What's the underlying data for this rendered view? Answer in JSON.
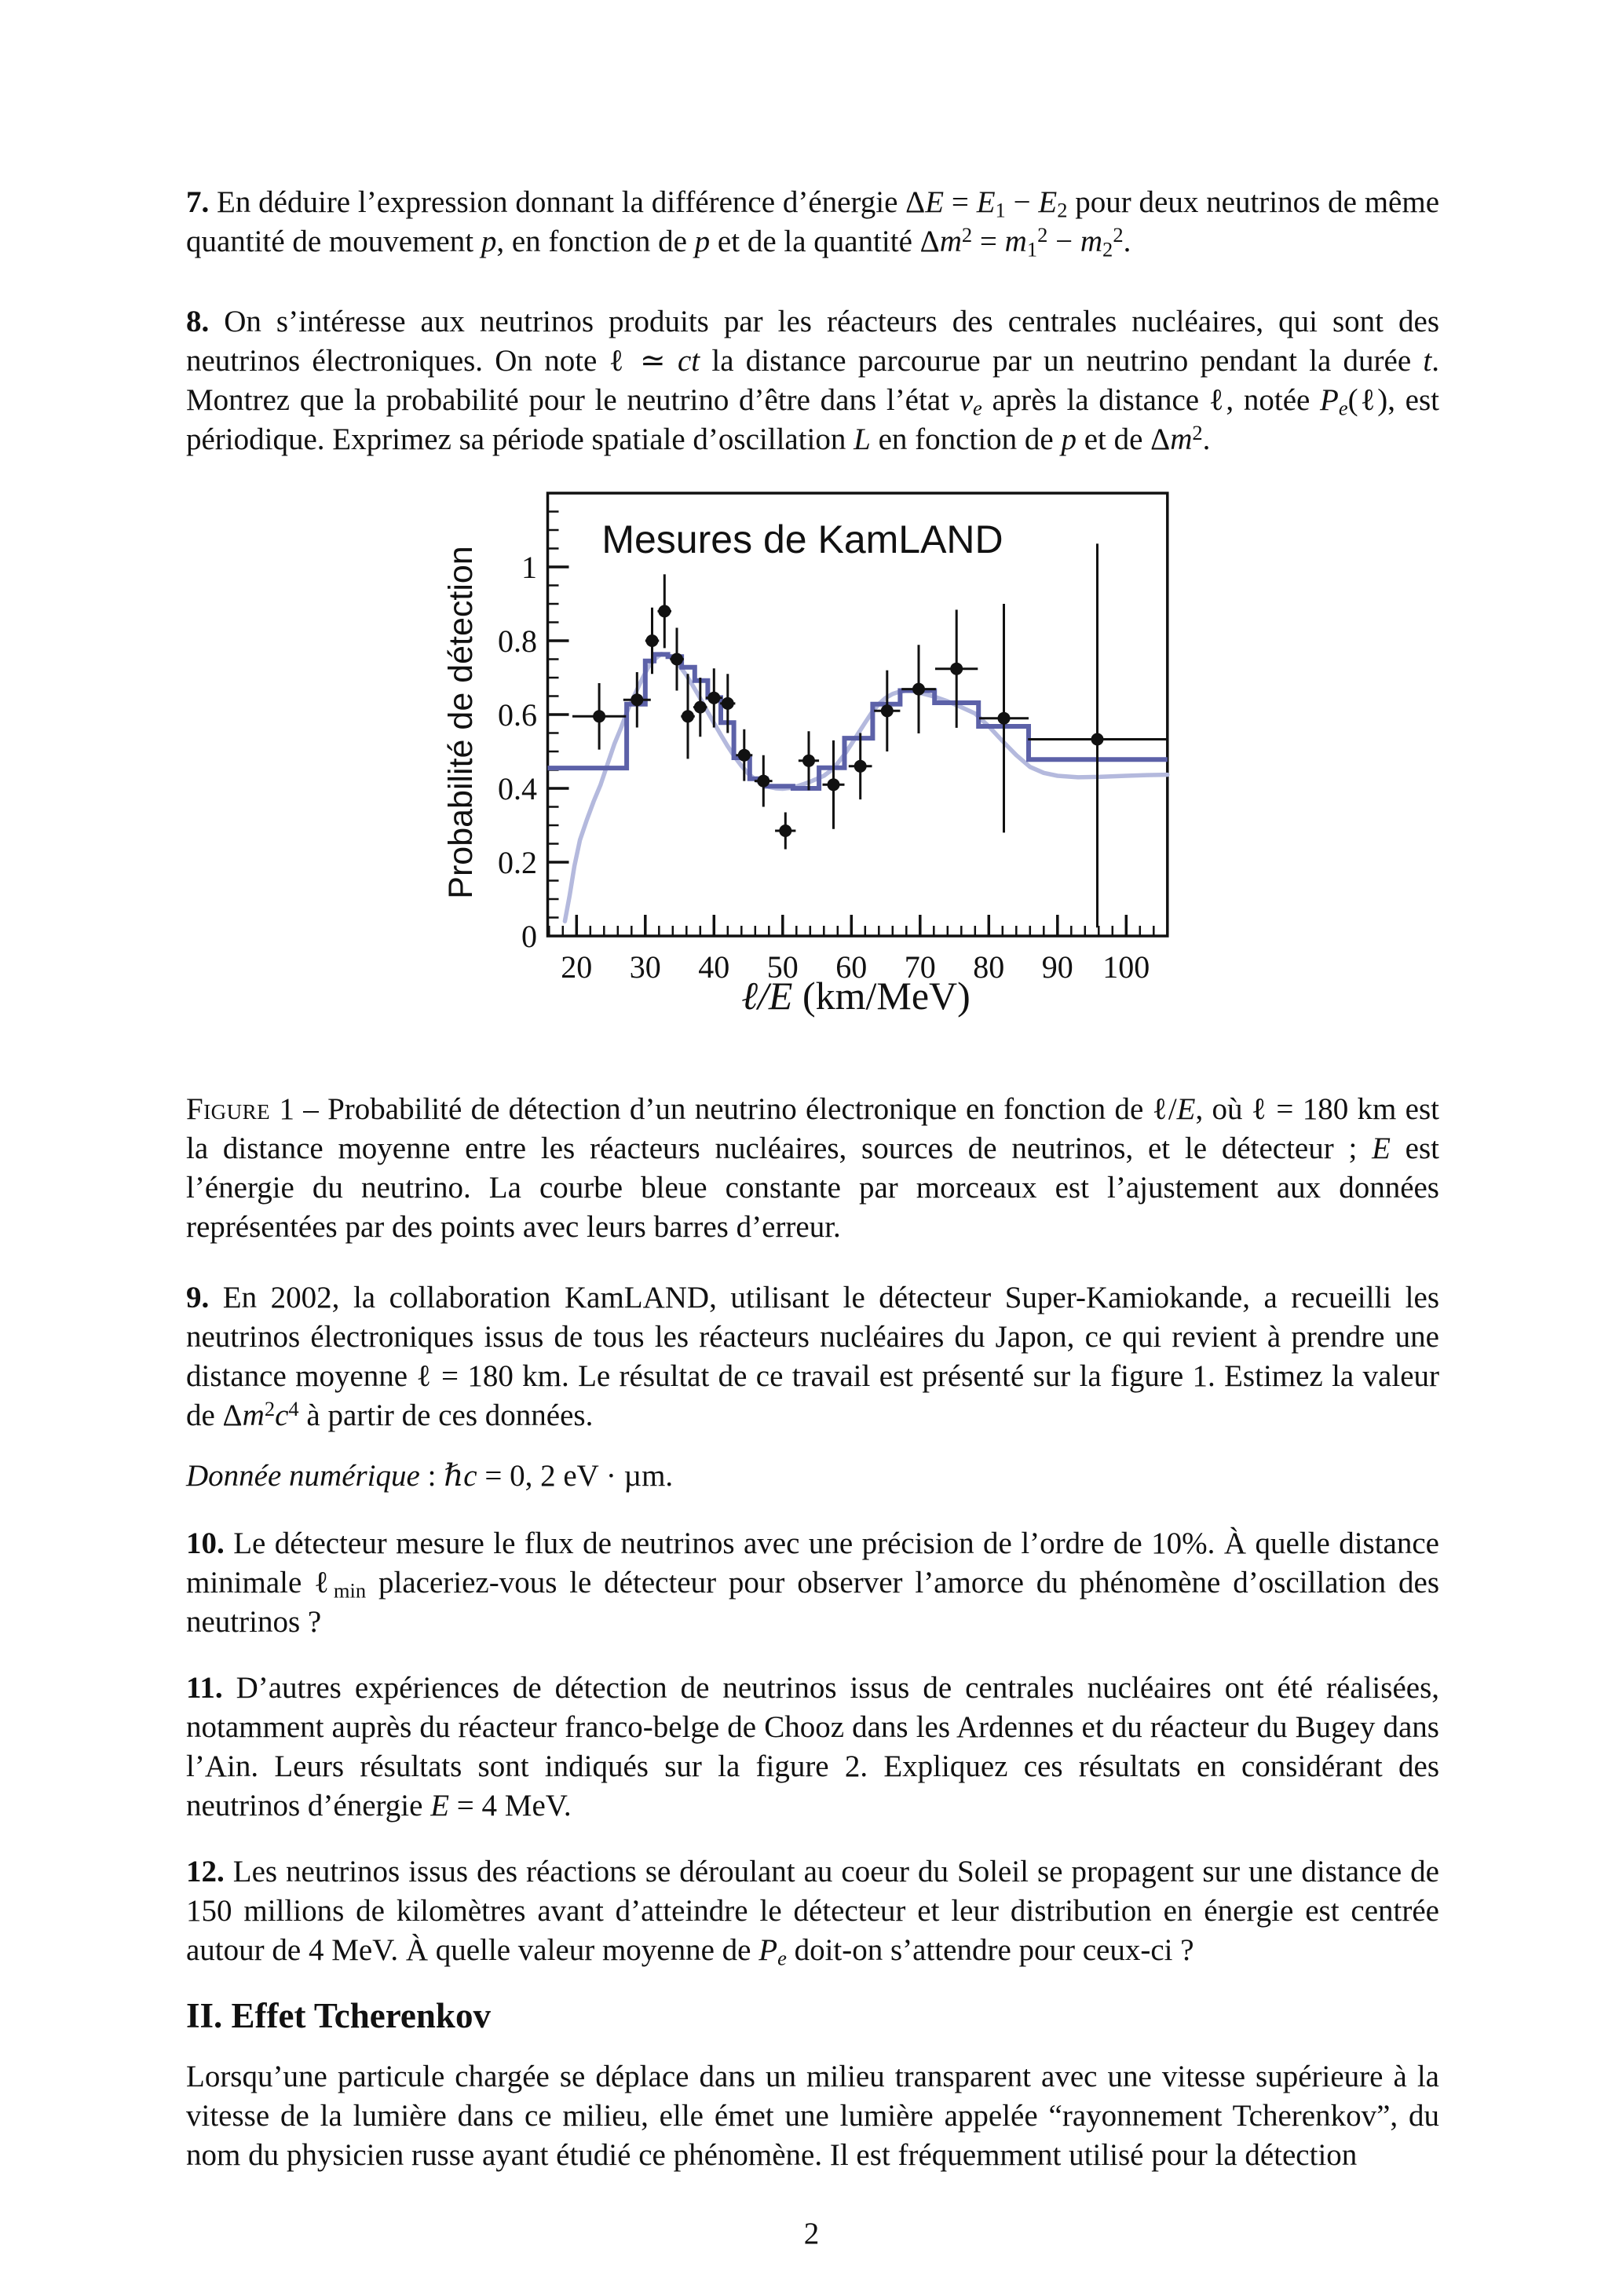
{
  "page": {
    "number": "2"
  },
  "content": {
    "q7_html": "<b>7.</b> En déduire l’expression donnant la différence d’énergie Δ<i>E</i> = <i>E</i><sub>1</sub> − <i>E</i><sub>2</sub> pour deux neutrinos de même quantité de mouvement <i>p</i>, en fonction de <i>p</i> et de la quantité Δ<i>m</i><sup>2</sup> = <i>m</i><sub>1</sub><sup>2</sup> − <i>m</i><sub>2</sub><sup>2</sup>.",
    "q8_html": "<b>8.</b> On s’intéresse aux neutrinos produits par les réacteurs des centrales nucléaires, qui sont des neutrinos électroniques. On note ℓ ≃ <i>ct</i> la distance parcourue par un neutrino pendant la durée <i>t</i>. Montrez que la probabilité pour le neutrino d’être dans l’état <i>ν<sub>e</sub></i> après la distance ℓ, notée <i>P<sub>e</sub></i>(ℓ), est périodique. Exprimez sa période spatiale d’oscillation <i>L</i> en fonction de <i>p</i> et de Δ<i>m</i><sup>2</sup>.",
    "caption_html": "<span class='sc'>Figure</span> 1 – Probabilité de détection d’un neutrino électronique en fonction de ℓ/<i>E</i>, où ℓ = 180 km est la distance moyenne entre les réacteurs nucléaires, sources de neutrinos, et le détecteur ; <i>E</i> est l’énergie du neutrino. La courbe bleue constante par morceaux est l’ajustement aux données représentées par des points avec leurs barres d’erreur.",
    "q9_html": "<b>9.</b> En 2002, la collaboration KamLAND, utilisant le détecteur Super-Kamiokande, a recueilli les neutrinos électroniques issus de tous les réacteurs nucléaires du Japon, ce qui revient à prendre une distance moyenne ℓ = 180 km. Le résultat de ce travail est présenté sur la figure 1. Estimez la valeur de Δ<i>m</i><sup>2</sup><i>c</i><sup>4</sup> à partir de ces données.",
    "data_html": "<i>Donnée numérique</i> : <i>ℏc</i> = 0, 2 eV · µm.",
    "q10_html": "<b>10.</b> Le détecteur mesure le flux de neutrinos avec une précision de l’ordre de 10%. À quelle distance minimale ℓ<sub>min</sub> placeriez-vous le détecteur pour observer l’amorce du phénomène d’oscillation des neutrinos ?",
    "q11_html": "<b>11.</b> D’autres expériences de détection de neutrinos issus de centrales nucléaires ont été réalisées, notamment auprès du réacteur franco-belge de Chooz dans les Ardennes et du réacteur du Bugey dans l’Ain. Leurs résultats sont indiqués sur la figure 2. Expliquez ces résultats en considérant des neutrinos d’énergie <i>E</i> = 4 MeV.",
    "q12_html": "<b>12.</b> Les neutrinos issus des réactions se déroulant au coeur du Soleil se propagent sur une distance de 150 millions de kilomètres avant d’atteindre le détecteur et leur distribution en énergie est centrée autour de 4 MeV. À quelle valeur moyenne de <i>P<sub>e</sub></i> doit-on s’attendre pour ceux-ci ?",
    "section_title": "II. Effet Tcherenkov",
    "intro_html": "Lorsqu’une particule chargée se déplace dans un milieu transparent avec une vitesse supérieure à la vitesse de la lumière dans ce milieu, elle émet une lumière appelée “rayonnement Tcherenkov”, du nom du physicien russe ayant étudié ce phénomène. Il est fréquemment utilisé pour la détection"
  },
  "chart_data": {
    "type": "scatter",
    "title": "Mesures de KamLAND",
    "xlabel": "ℓ/E (km/MeV)",
    "ylabel": "Probabilité de détection",
    "xlim": [
      15.8,
      106
    ],
    "ylim": [
      0,
      1.2
    ],
    "x_major_ticks": [
      20,
      30,
      40,
      50,
      60,
      70,
      80,
      90,
      100
    ],
    "x_minor_step": 2,
    "y_major_ticks": [
      0,
      0.2,
      0.4,
      0.6,
      0.8,
      1
    ],
    "y_minor_step": 0.05,
    "grid": false,
    "legend": "none",
    "colors": {
      "step": "#5c61a8",
      "smooth": "#b4b9dd",
      "points": "#111111",
      "axis": "#111111"
    },
    "points": [
      {
        "x": 23.3,
        "y": 0.595,
        "xerr": 3.9,
        "yerr": 0.09
      },
      {
        "x": 28.8,
        "y": 0.64,
        "xerr": 2.0,
        "yerr": 0.075
      },
      {
        "x": 31.0,
        "y": 0.8,
        "xerr": 1.0,
        "yerr": 0.09
      },
      {
        "x": 32.8,
        "y": 0.88,
        "xerr": 1.0,
        "yerr": 0.1
      },
      {
        "x": 34.6,
        "y": 0.75,
        "xerr": 1.0,
        "yerr": 0.085
      },
      {
        "x": 36.2,
        "y": 0.595,
        "xerr": 1.0,
        "yerr": 0.115
      },
      {
        "x": 38.0,
        "y": 0.62,
        "xerr": 1.0,
        "yerr": 0.08
      },
      {
        "x": 40.0,
        "y": 0.645,
        "xerr": 1.2,
        "yerr": 0.08
      },
      {
        "x": 42.0,
        "y": 0.63,
        "xerr": 1.1,
        "yerr": 0.08
      },
      {
        "x": 44.4,
        "y": 0.49,
        "xerr": 1.2,
        "yerr": 0.07
      },
      {
        "x": 47.2,
        "y": 0.42,
        "xerr": 1.3,
        "yerr": 0.07
      },
      {
        "x": 50.4,
        "y": 0.285,
        "xerr": 1.5,
        "yerr": 0.05
      },
      {
        "x": 53.8,
        "y": 0.475,
        "xerr": 1.5,
        "yerr": 0.08
      },
      {
        "x": 57.4,
        "y": 0.41,
        "xerr": 1.6,
        "yerr": 0.12
      },
      {
        "x": 61.3,
        "y": 0.46,
        "xerr": 1.7,
        "yerr": 0.09
      },
      {
        "x": 65.2,
        "y": 0.61,
        "xerr": 1.9,
        "yerr": 0.11
      },
      {
        "x": 69.8,
        "y": 0.669,
        "xerr": 2.5,
        "yerr": 0.12
      },
      {
        "x": 75.3,
        "y": 0.724,
        "xerr": 3.1,
        "yerr": 0.16
      },
      {
        "x": 82.2,
        "y": 0.59,
        "xerr": 3.6,
        "yerr": 0.31
      },
      {
        "x": 95.8,
        "y": 0.533,
        "xerr": 10.1,
        "yerr_lo": 0.51,
        "yerr_hi": 0.53
      }
    ],
    "step_fit": [
      [
        15.8,
        0.455
      ],
      [
        27.3,
        0.628
      ],
      [
        30.0,
        0.745
      ],
      [
        31.3,
        0.763
      ],
      [
        33.3,
        0.757
      ],
      [
        35.3,
        0.728
      ],
      [
        37.2,
        0.692
      ],
      [
        39.1,
        0.646
      ],
      [
        41.0,
        0.578
      ],
      [
        42.9,
        0.483
      ],
      [
        45.2,
        0.426
      ],
      [
        47.6,
        0.406
      ],
      [
        51.5,
        0.4
      ],
      [
        55.3,
        0.456
      ],
      [
        59.0,
        0.536
      ],
      [
        63.1,
        0.628
      ],
      [
        67.1,
        0.665
      ],
      [
        72.1,
        0.632
      ],
      [
        78.5,
        0.568
      ],
      [
        85.8,
        0.478
      ],
      [
        106,
        0.478
      ]
    ],
    "smooth_curve": [
      [
        18.3,
        0.04
      ],
      [
        19,
        0.11
      ],
      [
        19.7,
        0.19
      ],
      [
        20.5,
        0.26
      ],
      [
        21.5,
        0.315
      ],
      [
        22.5,
        0.365
      ],
      [
        23.5,
        0.41
      ],
      [
        24.5,
        0.465
      ],
      [
        25.5,
        0.52
      ],
      [
        26.5,
        0.565
      ],
      [
        27.5,
        0.615
      ],
      [
        28.5,
        0.655
      ],
      [
        29.5,
        0.695
      ],
      [
        30.5,
        0.73
      ],
      [
        31.5,
        0.752
      ],
      [
        32.3,
        0.764
      ],
      [
        33.2,
        0.762
      ],
      [
        34,
        0.752
      ],
      [
        35,
        0.732
      ],
      [
        36,
        0.706
      ],
      [
        37,
        0.676
      ],
      [
        38,
        0.644
      ],
      [
        39,
        0.61
      ],
      [
        40,
        0.577
      ],
      [
        41,
        0.545
      ],
      [
        42,
        0.514
      ],
      [
        43,
        0.486
      ],
      [
        44,
        0.461
      ],
      [
        45,
        0.44
      ],
      [
        46,
        0.424
      ],
      [
        47,
        0.412
      ],
      [
        48,
        0.404
      ],
      [
        49,
        0.4
      ],
      [
        50,
        0.399
      ],
      [
        51,
        0.401
      ],
      [
        52,
        0.405
      ],
      [
        53,
        0.411
      ],
      [
        54,
        0.418
      ],
      [
        55,
        0.426
      ],
      [
        56,
        0.434
      ],
      [
        57,
        0.448
      ],
      [
        58,
        0.468
      ],
      [
        59,
        0.492
      ],
      [
        60,
        0.52
      ],
      [
        61,
        0.549
      ],
      [
        62,
        0.578
      ],
      [
        63,
        0.606
      ],
      [
        64,
        0.629
      ],
      [
        65,
        0.645
      ],
      [
        66,
        0.656
      ],
      [
        67,
        0.662
      ],
      [
        68,
        0.665
      ],
      [
        69,
        0.664
      ],
      [
        70,
        0.659
      ],
      [
        72,
        0.649
      ],
      [
        74,
        0.636
      ],
      [
        76,
        0.62
      ],
      [
        78,
        0.603
      ],
      [
        80,
        0.568
      ],
      [
        82,
        0.528
      ],
      [
        84,
        0.49
      ],
      [
        86,
        0.458
      ],
      [
        88,
        0.442
      ],
      [
        90,
        0.434
      ],
      [
        93,
        0.43
      ],
      [
        96,
        0.431
      ],
      [
        100,
        0.434
      ],
      [
        103,
        0.436
      ],
      [
        106,
        0.437
      ]
    ]
  }
}
